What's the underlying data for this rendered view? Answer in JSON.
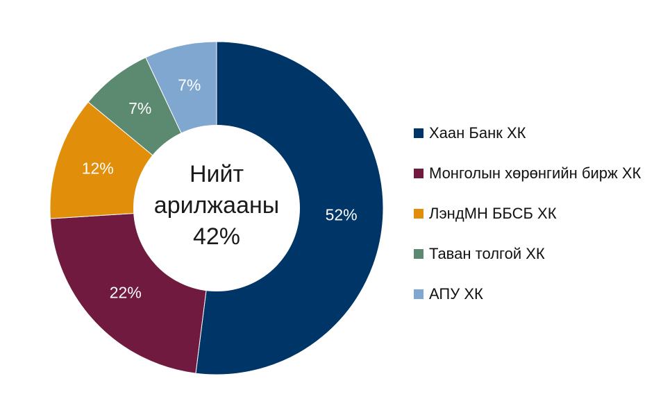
{
  "chart_data": {
    "type": "pie",
    "variant": "donut",
    "title": "",
    "center_label": [
      "Нийт",
      "арилжааны",
      "42%"
    ],
    "legend_position": "right",
    "series": [
      {
        "name": "Хаан Банк ХК",
        "value": 52,
        "label": "52%",
        "color": "#003567"
      },
      {
        "name": "Монголын хөрөнгийн бирж ХК",
        "value": 22,
        "label": "22%",
        "color": "#6f1a3e"
      },
      {
        "name": "ЛэндМН ББСБ ХК",
        "value": 12,
        "label": "12%",
        "color": "#e18e0b"
      },
      {
        "name": "Таван толгой ХК",
        "value": 7,
        "label": "7%",
        "color": "#5b8a70"
      },
      {
        "name": "АПУ ХК",
        "value": 7,
        "label": "7%",
        "color": "#7fa7cf"
      }
    ]
  }
}
